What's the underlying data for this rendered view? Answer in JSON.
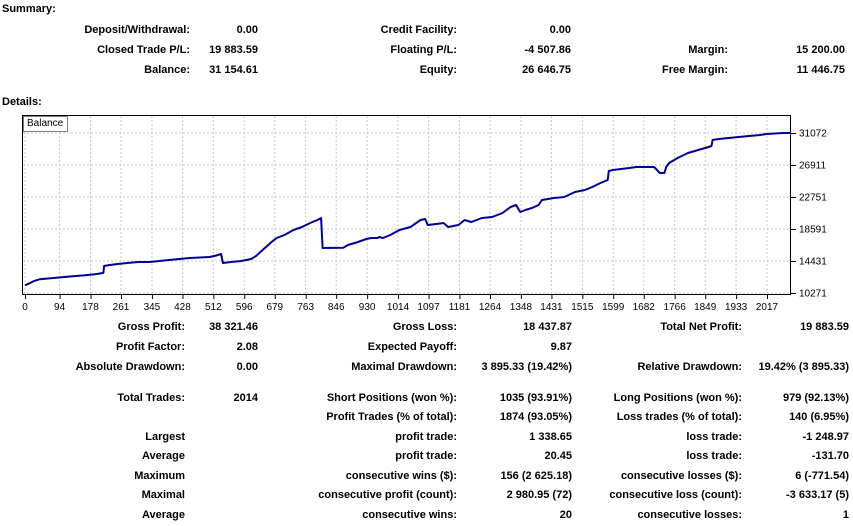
{
  "summary": {
    "title": "Summary:",
    "deposit_withdrawal": {
      "label": "Deposit/Withdrawal:",
      "value": "0.00"
    },
    "credit_facility": {
      "label": "Credit Facility:",
      "value": "0.00"
    },
    "closed_trade_pl": {
      "label": "Closed Trade P/L:",
      "value": "19 883.59"
    },
    "floating_pl": {
      "label": "Floating P/L:",
      "value": "-4 507.86"
    },
    "margin": {
      "label": "Margin:",
      "value": "15 200.00"
    },
    "balance": {
      "label": "Balance:",
      "value": "31 154.61"
    },
    "equity": {
      "label": "Equity:",
      "value": "26 646.75"
    },
    "free_margin": {
      "label": "Free Margin:",
      "value": "11 446.75"
    }
  },
  "details": {
    "title": "Details:",
    "stats": {
      "gross_profit": {
        "label": "Gross Profit:",
        "value": "38 321.46"
      },
      "gross_loss": {
        "label": "Gross Loss:",
        "value": "18 437.87"
      },
      "total_net_profit": {
        "label": "Total Net Profit:",
        "value": "19 883.59"
      },
      "profit_factor": {
        "label": "Profit Factor:",
        "value": "2.08"
      },
      "expected_payoff": {
        "label": "Expected Payoff:",
        "value": "9.87"
      },
      "absolute_drawdown": {
        "label": "Absolute Drawdown:",
        "value": "0.00"
      },
      "maximal_drawdown": {
        "label": "Maximal Drawdown:",
        "value": "3 895.33 (19.42%)"
      },
      "relative_drawdown": {
        "label": "Relative Drawdown:",
        "value": "19.42% (3 895.33)"
      },
      "total_trades": {
        "label": "Total Trades:",
        "value": "2014"
      },
      "short_positions": {
        "label": "Short Positions (won %):",
        "value": "1035 (93.91%)"
      },
      "long_positions": {
        "label": "Long Positions (won %):",
        "value": "979 (92.13%)"
      },
      "profit_trades": {
        "label": "Profit Trades (% of total):",
        "value": "1874 (93.05%)"
      },
      "loss_trades": {
        "label": "Loss trades (% of total):",
        "value": "140 (6.95%)"
      },
      "largest": {
        "label": "Largest"
      },
      "largest_profit_trade": {
        "label": "profit trade:",
        "value": "1 338.65"
      },
      "largest_loss_trade": {
        "label": "loss trade:",
        "value": "-1 248.97"
      },
      "average": {
        "label": "Average"
      },
      "avg_profit_trade": {
        "label": "profit trade:",
        "value": "20.45"
      },
      "avg_loss_trade": {
        "label": "loss trade:",
        "value": "-131.70"
      },
      "maximum": {
        "label": "Maximum"
      },
      "max_consec_wins": {
        "label": "consecutive wins ($):",
        "value": "156 (2 625.18)"
      },
      "max_consec_losses": {
        "label": "consecutive losses ($):",
        "value": "6 (-771.54)"
      },
      "maximal": {
        "label": "Maximal"
      },
      "maximal_consec_profit": {
        "label": "consecutive profit (count):",
        "value": "2 980.95 (72)"
      },
      "maximal_consec_loss": {
        "label": "consecutive loss (count):",
        "value": "-3 633.17 (5)"
      },
      "average2": {
        "label": "Average"
      },
      "avg_consec_wins": {
        "label": "consecutive wins:",
        "value": "20"
      },
      "avg_consec_losses": {
        "label": "consecutive losses:",
        "value": "1"
      }
    }
  },
  "chart_data": {
    "type": "line",
    "title": "Balance",
    "line_color": "#000096",
    "grid_color": "#c8c8c8",
    "grid": "dashed",
    "y_axis_position": "right",
    "x_ticks": [
      0,
      94,
      178,
      261,
      345,
      428,
      512,
      596,
      679,
      763,
      846,
      930,
      1014,
      1097,
      1181,
      1264,
      1348,
      1431,
      1515,
      1599,
      1682,
      1766,
      1849,
      1933,
      2017
    ],
    "y_ticks": [
      10271,
      14431,
      18591,
      22751,
      26911,
      31072
    ],
    "x_range": [
      0,
      2080
    ],
    "y_range": [
      10271,
      31072
    ],
    "series": [
      {
        "name": "Balance",
        "points": [
          [
            0,
            11271
          ],
          [
            15,
            11600
          ],
          [
            25,
            11850
          ],
          [
            40,
            12050
          ],
          [
            70,
            12200
          ],
          [
            100,
            12320
          ],
          [
            130,
            12450
          ],
          [
            160,
            12560
          ],
          [
            190,
            12700
          ],
          [
            205,
            12820
          ],
          [
            213,
            12900
          ],
          [
            215,
            13780
          ],
          [
            228,
            13900
          ],
          [
            252,
            14040
          ],
          [
            278,
            14170
          ],
          [
            308,
            14300
          ],
          [
            338,
            14300
          ],
          [
            365,
            14430
          ],
          [
            392,
            14560
          ],
          [
            420,
            14690
          ],
          [
            448,
            14820
          ],
          [
            475,
            14890
          ],
          [
            502,
            14950
          ],
          [
            520,
            15150
          ],
          [
            533,
            15340
          ],
          [
            538,
            14170
          ],
          [
            560,
            14300
          ],
          [
            588,
            14430
          ],
          [
            615,
            14690
          ],
          [
            628,
            15080
          ],
          [
            643,
            15730
          ],
          [
            658,
            16380
          ],
          [
            670,
            16900
          ],
          [
            684,
            17420
          ],
          [
            705,
            17810
          ],
          [
            730,
            18460
          ],
          [
            753,
            18850
          ],
          [
            775,
            19370
          ],
          [
            795,
            19760
          ],
          [
            805,
            20020
          ],
          [
            809,
            16120
          ],
          [
            865,
            16160
          ],
          [
            878,
            16510
          ],
          [
            905,
            16900
          ],
          [
            928,
            17290
          ],
          [
            942,
            17420
          ],
          [
            958,
            17420
          ],
          [
            963,
            17550
          ],
          [
            973,
            17420
          ],
          [
            993,
            17810
          ],
          [
            1018,
            18460
          ],
          [
            1048,
            18850
          ],
          [
            1075,
            19760
          ],
          [
            1088,
            19890
          ],
          [
            1095,
            19110
          ],
          [
            1118,
            19240
          ],
          [
            1138,
            19370
          ],
          [
            1150,
            18850
          ],
          [
            1178,
            19110
          ],
          [
            1195,
            19760
          ],
          [
            1213,
            19500
          ],
          [
            1242,
            20020
          ],
          [
            1270,
            20150
          ],
          [
            1298,
            20670
          ],
          [
            1320,
            21450
          ],
          [
            1335,
            21710
          ],
          [
            1346,
            20800
          ],
          [
            1360,
            21060
          ],
          [
            1378,
            21320
          ],
          [
            1396,
            21710
          ],
          [
            1405,
            22360
          ],
          [
            1438,
            22620
          ],
          [
            1466,
            22750
          ],
          [
            1495,
            23400
          ],
          [
            1522,
            23660
          ],
          [
            1542,
            24050
          ],
          [
            1564,
            24570
          ],
          [
            1584,
            24960
          ],
          [
            1587,
            26130
          ],
          [
            1598,
            26260
          ],
          [
            1620,
            26390
          ],
          [
            1643,
            26520
          ],
          [
            1662,
            26650
          ],
          [
            1710,
            26650
          ],
          [
            1726,
            25870
          ],
          [
            1738,
            25870
          ],
          [
            1743,
            26650
          ],
          [
            1751,
            27170
          ],
          [
            1774,
            27820
          ],
          [
            1802,
            28470
          ],
          [
            1830,
            28860
          ],
          [
            1858,
            29250
          ],
          [
            1866,
            29380
          ],
          [
            1869,
            30160
          ],
          [
            1886,
            30290
          ],
          [
            1940,
            30550
          ],
          [
            1968,
            30680
          ],
          [
            1998,
            30810
          ],
          [
            2016,
            30940
          ],
          [
            2060,
            31070
          ],
          [
            2080,
            31070
          ]
        ]
      }
    ]
  }
}
